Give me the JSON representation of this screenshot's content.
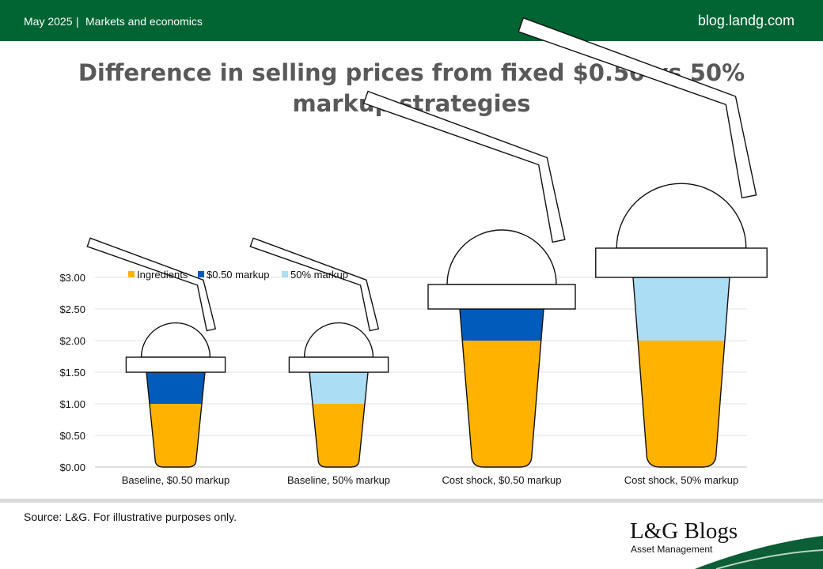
{
  "header": {
    "date": "May 2025",
    "separator": "|",
    "category": "Markets and economics",
    "site": "blog.landg.com"
  },
  "footer": {
    "source": "Source: L&G. For illustrative purposes only.",
    "brand": "L&G Blogs",
    "brand_sub": "Asset Management"
  },
  "colors": {
    "header_green": "#006433",
    "ingredients": "#FFB300",
    "fixed_markup": "#005BBB",
    "pct_markup": "#ABDDF5"
  },
  "chart_data": {
    "type": "bar",
    "title_lines": [
      "Difference in selling prices from fixed $0.50 vs 50%",
      "markup strategies"
    ],
    "categories": [
      "Baseline, $0.50 markup",
      "Baseline, 50% markup",
      "Cost shock, $0.50 markup",
      "Cost shock, 50% markup"
    ],
    "series": [
      {
        "name": "Ingredients",
        "values": [
          1.0,
          1.0,
          2.0,
          2.0
        ]
      },
      {
        "name": "$0.50 markup",
        "values": [
          0.5,
          0,
          0.5,
          0
        ]
      },
      {
        "name": "50% markup",
        "values": [
          0,
          0.5,
          0,
          1.0
        ]
      }
    ],
    "y_tick_labels": [
      "$0.00",
      "$0.50",
      "$1.00",
      "$1.50",
      "$2.00",
      "$2.50",
      "$3.00"
    ],
    "ylim": [
      0,
      3.0
    ],
    "stacked": true,
    "grid": true,
    "legend_position": "top-left"
  }
}
